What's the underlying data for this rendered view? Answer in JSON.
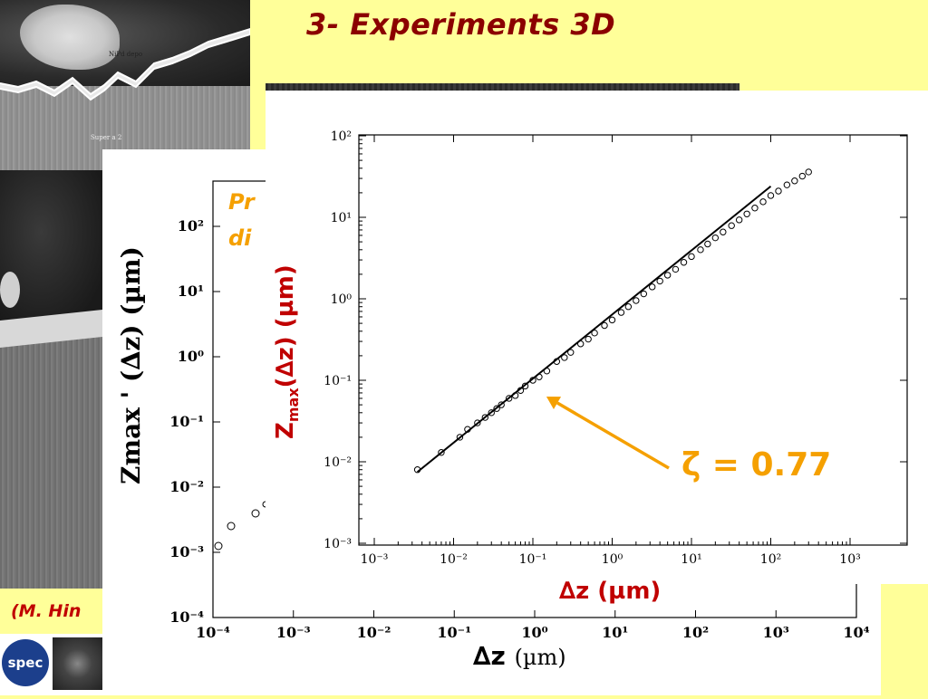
{
  "slide": {
    "title": "3- Experiments 3D",
    "citation": "(M. Hin",
    "logo_text": "spec"
  },
  "micrograph": {
    "label_deposit": "NiPd depo",
    "label_superalloy": "Super a 2"
  },
  "back_chart": {
    "ylabel": "Z",
    "ylabel_rest": "max ' (∆z) (µm)",
    "xlabel": "∆z",
    "xlabel_unit": "(µm)",
    "note_line1": "Pr",
    "note_line2": "di",
    "x_ticks": [
      "10⁻⁴",
      "10⁻³",
      "10⁻²",
      "10⁻¹",
      "10⁰",
      "10¹",
      "10²",
      "10³",
      "10⁴"
    ],
    "y_ticks": [
      "10²",
      "10¹",
      "10⁰",
      "10⁻¹",
      "10⁻²",
      "10⁻³",
      "10⁻⁴"
    ]
  },
  "chart_data": {
    "type": "scatter",
    "title": "",
    "xlabel": "∆z (µm)",
    "ylabel": "Zmax(∆z) (µm)",
    "xscale": "log",
    "yscale": "log",
    "xlim": [
      0.0003,
      10000
    ],
    "ylim": [
      0.001,
      100
    ],
    "x_ticks": [
      0.001,
      0.01,
      0.1,
      1,
      10,
      100,
      1000
    ],
    "y_ticks": [
      0.001,
      0.01,
      0.1,
      1,
      10,
      100
    ],
    "x_tick_labels": [
      "10⁻³",
      "10⁻²",
      "10⁻¹",
      "10⁰",
      "10¹",
      "10²",
      "10³"
    ],
    "y_tick_labels": [
      "10⁻³",
      "10⁻²",
      "10⁻¹",
      "10⁰",
      "10¹",
      "10²"
    ],
    "series": [
      {
        "marker": "open-circle",
        "x": [
          0.0035,
          0.007,
          0.012,
          0.015,
          0.02,
          0.025,
          0.03,
          0.035,
          0.04,
          0.05,
          0.06,
          0.07,
          0.08,
          0.1,
          0.12,
          0.15,
          0.2,
          0.25,
          0.3,
          0.4,
          0.5,
          0.6,
          0.8,
          1.0,
          1.3,
          1.6,
          2.0,
          2.5,
          3.2,
          4.0,
          5.0,
          6.3,
          8.0,
          10,
          13,
          16,
          20,
          25,
          32,
          40,
          50,
          63,
          80,
          100,
          125,
          160,
          200,
          250,
          300
        ],
        "y": [
          0.008,
          0.013,
          0.02,
          0.025,
          0.03,
          0.035,
          0.04,
          0.045,
          0.05,
          0.06,
          0.065,
          0.075,
          0.085,
          0.1,
          0.11,
          0.13,
          0.17,
          0.19,
          0.22,
          0.28,
          0.32,
          0.38,
          0.47,
          0.55,
          0.68,
          0.8,
          0.95,
          1.15,
          1.4,
          1.65,
          1.95,
          2.3,
          2.8,
          3.3,
          4.0,
          4.7,
          5.6,
          6.6,
          7.9,
          9.3,
          11,
          13,
          15.5,
          18.5,
          21,
          25,
          28,
          32,
          36
        ]
      },
      {
        "name": "fit",
        "style": "line",
        "x": [
          0.0035,
          100
        ],
        "y": [
          0.0075,
          24
        ]
      }
    ],
    "annotation": "ζ = 0.77",
    "annotation_arrow_target": [
      0.12,
      0.06
    ]
  }
}
